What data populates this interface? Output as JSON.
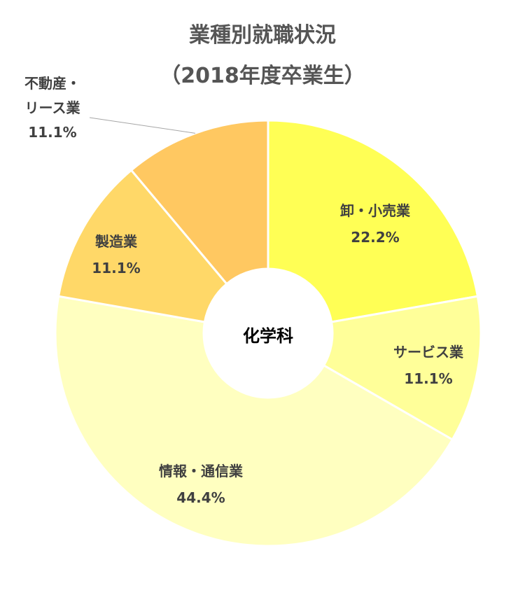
{
  "chart_data": {
    "type": "donut",
    "title_lines": [
      "業種別就職状況",
      "（2018年度卒業生）"
    ],
    "center_label": "化学科",
    "slices": [
      {
        "name_lines": [
          "卸・小売業"
        ],
        "value": 22.2,
        "percent_label": "22.2%",
        "color": "#ffff55"
      },
      {
        "name_lines": [
          "サービス業"
        ],
        "value": 11.1,
        "percent_label": "11.1%",
        "color": "#ffff99"
      },
      {
        "name_lines": [
          "情報・通信業"
        ],
        "value": 44.4,
        "percent_label": "44.4%",
        "color": "#ffffc0"
      },
      {
        "name_lines": [
          "製造業"
        ],
        "value": 11.1,
        "percent_label": "11.1%",
        "color": "#ffd868"
      },
      {
        "name_lines": [
          "不動産・",
          "リース業"
        ],
        "value": 11.1,
        "percent_label": "11.1%",
        "color": "#ffc861"
      }
    ]
  }
}
